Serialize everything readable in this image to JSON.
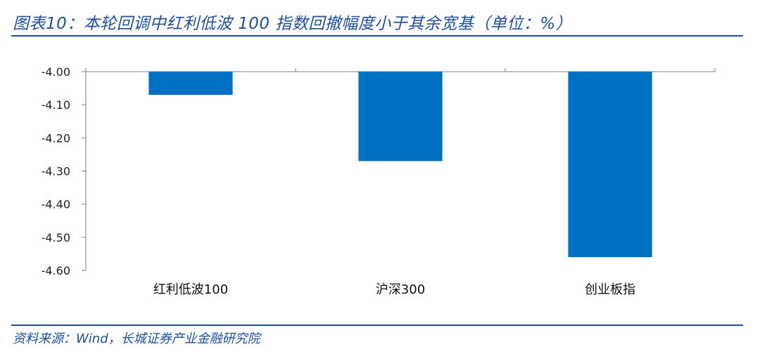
{
  "header": {
    "title": "图表10：本轮回调中红利低波 100 指数回撤幅度小于其余宽基（单位：%）"
  },
  "footer": {
    "source": "资料来源：Wind，长城证券产业金融研究院"
  },
  "colors": {
    "bar": "#0070c0",
    "title": "#1f4e9a",
    "axis": "#808080"
  },
  "chart_data": {
    "type": "bar",
    "title": "本轮回调中红利低波 100 指数回撤幅度小于其余宽基（单位：%）",
    "categories": [
      "红利低波100",
      "沪深300",
      "创业板指"
    ],
    "values": [
      -4.07,
      -4.27,
      -4.56
    ],
    "yticks": [
      "-4.00",
      "-4.10",
      "-4.20",
      "-4.30",
      "-4.40",
      "-4.50",
      "-4.60"
    ],
    "ylim": [
      -4.6,
      -4.0
    ],
    "y_inverted_baseline": -4.0,
    "xlabel": "",
    "ylabel": "",
    "grid": false,
    "legend": "none"
  }
}
